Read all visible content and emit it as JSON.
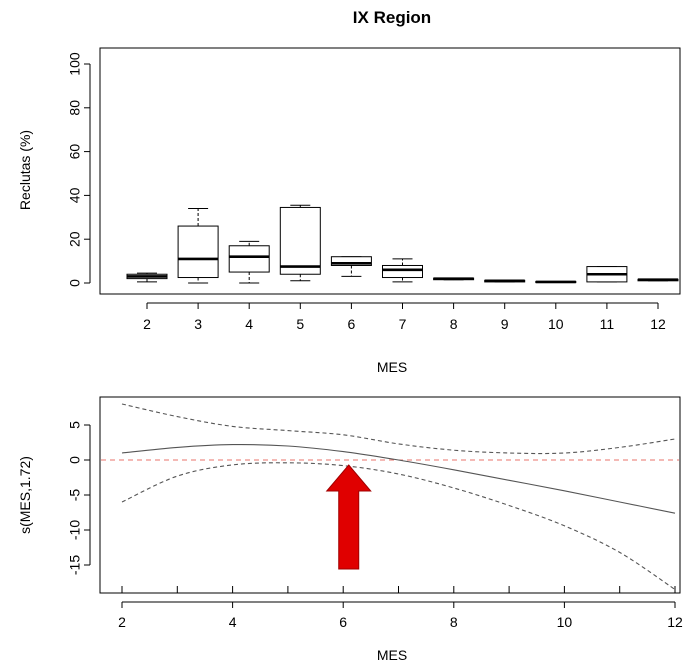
{
  "chart_data": [
    {
      "type": "box",
      "title": "IX Region",
      "xlabel": "MES",
      "ylabel": "Reclutas (%)",
      "ylim": [
        0,
        100
      ],
      "yticks": [
        "0",
        "20",
        "40",
        "60",
        "80",
        "100"
      ],
      "categories": [
        "2",
        "3",
        "4",
        "5",
        "6",
        "7",
        "8",
        "9",
        "10",
        "11",
        "12"
      ],
      "boxes": [
        {
          "min": 0.5,
          "q1": 2,
          "median": 3,
          "q3": 4,
          "max": 4.5
        },
        {
          "min": 0,
          "q1": 2.5,
          "median": 11,
          "q3": 26,
          "max": 34
        },
        {
          "min": 0,
          "q1": 5,
          "median": 12,
          "q3": 17,
          "max": 19
        },
        {
          "min": 1,
          "q1": 4,
          "median": 7.5,
          "q3": 34.5,
          "max": 35.5
        },
        {
          "min": 3,
          "q1": 8,
          "median": 9,
          "q3": 12,
          "max": 12
        },
        {
          "min": 0.5,
          "q1": 2.5,
          "median": 6,
          "q3": 8,
          "max": 11
        },
        {
          "min": 1.5,
          "q1": 1.5,
          "median": 2,
          "q3": 2.2,
          "max": 2.2
        },
        {
          "min": 0.5,
          "q1": 0.5,
          "median": 1,
          "q3": 1.2,
          "max": 1.2
        },
        {
          "min": 0.2,
          "q1": 0.2,
          "median": 0.5,
          "q3": 0.7,
          "max": 0.7
        },
        {
          "min": 0.5,
          "q1": 0.5,
          "median": 4,
          "q3": 7.5,
          "max": 7.5
        },
        {
          "min": 1,
          "q1": 1,
          "median": 1.5,
          "q3": 1.7,
          "max": 1.7
        }
      ],
      "grid": false
    },
    {
      "type": "line",
      "title": "",
      "xlabel": "MES",
      "ylabel": "s(MES,1.72)",
      "xlim": [
        2,
        12
      ],
      "ylim": [
        -18.5,
        8
      ],
      "xticks": [
        "2",
        "4",
        "6",
        "8",
        "10",
        "12"
      ],
      "yticks": [
        "-15",
        "-10",
        "-5",
        "0",
        "5"
      ],
      "x": [
        2,
        3,
        4,
        5,
        6,
        7,
        8,
        9,
        10,
        11,
        12
      ],
      "series": [
        {
          "values": [
            1.0,
            1.8,
            2.2,
            2.0,
            1.2,
            0.0,
            -1.4,
            -2.9,
            -4.4,
            -6.0,
            -7.6
          ],
          "style": "solid",
          "color": "#555555"
        },
        {
          "values": [
            8.0,
            6.2,
            4.8,
            4.2,
            3.6,
            2.3,
            1.4,
            1.0,
            1.0,
            1.8,
            3.0
          ],
          "style": "dashed",
          "color": "#555555"
        },
        {
          "values": [
            -6.0,
            -2.3,
            -0.7,
            -0.4,
            -0.8,
            -2.0,
            -4.0,
            -6.5,
            -9.4,
            -13.2,
            -18.5
          ],
          "style": "dashed",
          "color": "#555555"
        }
      ],
      "reference_line": {
        "y": 0,
        "color": "#e8736b",
        "style": "dashed"
      },
      "annotation": {
        "type": "arrow",
        "direction": "up",
        "x": 6.1,
        "y": 0,
        "color": "#e00000"
      },
      "grid": false
    }
  ]
}
